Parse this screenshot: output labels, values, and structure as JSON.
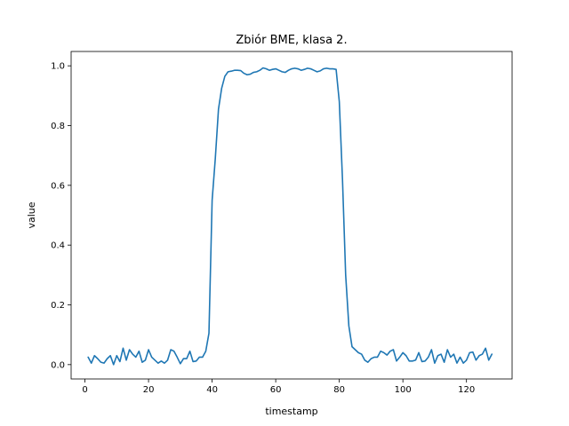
{
  "chart_data": {
    "type": "line",
    "title": "Zbiór BME, klasa 2.",
    "xlabel": "timestamp",
    "ylabel": "value",
    "xlim": [
      -4.35,
      134.35
    ],
    "ylim": [
      -0.048,
      1.048
    ],
    "xticks": [
      0,
      20,
      40,
      60,
      80,
      100,
      120
    ],
    "yticks": [
      0.0,
      0.2,
      0.4,
      0.6,
      0.8,
      1.0
    ],
    "xtick_labels": [
      "0",
      "20",
      "40",
      "60",
      "80",
      "100",
      "120"
    ],
    "ytick_labels": [
      "0.0",
      "0.2",
      "0.4",
      "0.6",
      "0.8",
      "1.0"
    ],
    "grid": false,
    "legend": "none",
    "series": [
      {
        "color": "#1f77b4",
        "x": [
          1,
          2,
          3,
          4,
          5,
          6,
          7,
          8,
          9,
          10,
          11,
          12,
          13,
          14,
          15,
          16,
          17,
          18,
          19,
          20,
          21,
          22,
          23,
          24,
          25,
          26,
          27,
          28,
          29,
          30,
          31,
          32,
          33,
          34,
          35,
          36,
          37,
          38,
          39,
          40,
          41,
          42,
          43,
          44,
          45,
          46,
          47,
          48,
          49,
          50,
          51,
          52,
          53,
          54,
          55,
          56,
          57,
          58,
          59,
          60,
          61,
          62,
          63,
          64,
          65,
          66,
          67,
          68,
          69,
          70,
          71,
          72,
          73,
          74,
          75,
          76,
          77,
          78,
          79,
          80,
          81,
          82,
          83,
          84,
          85,
          86,
          87,
          88,
          89,
          90,
          91,
          92,
          93,
          94,
          95,
          96,
          97,
          98,
          99,
          100,
          101,
          102,
          103,
          104,
          105,
          106,
          107,
          108,
          109,
          110,
          111,
          112,
          113,
          114,
          115,
          116,
          117,
          118,
          119,
          120,
          121,
          122,
          123,
          124,
          125,
          126,
          127,
          128
        ],
        "values": [
          0.025,
          0.005,
          0.03,
          0.02,
          0.008,
          0.005,
          0.02,
          0.03,
          0.0,
          0.03,
          0.01,
          0.055,
          0.015,
          0.05,
          0.035,
          0.025,
          0.045,
          0.008,
          0.015,
          0.05,
          0.025,
          0.015,
          0.005,
          0.012,
          0.005,
          0.015,
          0.05,
          0.045,
          0.025,
          0.003,
          0.02,
          0.02,
          0.045,
          0.01,
          0.012,
          0.025,
          0.025,
          0.045,
          0.105,
          0.55,
          0.69,
          0.855,
          0.925,
          0.965,
          0.98,
          0.982,
          0.985,
          0.985,
          0.984,
          0.975,
          0.97,
          0.972,
          0.978,
          0.98,
          0.985,
          0.993,
          0.99,
          0.985,
          0.988,
          0.99,
          0.985,
          0.98,
          0.978,
          0.985,
          0.99,
          0.992,
          0.99,
          0.985,
          0.988,
          0.992,
          0.99,
          0.985,
          0.98,
          0.983,
          0.99,
          0.992,
          0.99,
          0.99,
          0.988,
          0.88,
          0.62,
          0.3,
          0.13,
          0.06,
          0.05,
          0.04,
          0.035,
          0.015,
          0.008,
          0.02,
          0.025,
          0.025,
          0.045,
          0.04,
          0.032,
          0.045,
          0.05,
          0.012,
          0.025,
          0.04,
          0.03,
          0.012,
          0.012,
          0.015,
          0.04,
          0.01,
          0.012,
          0.025,
          0.05,
          0.005,
          0.03,
          0.035,
          0.008,
          0.05,
          0.025,
          0.035,
          0.005,
          0.025,
          0.005,
          0.015,
          0.04,
          0.042,
          0.015,
          0.03,
          0.035,
          0.055,
          0.015,
          0.035
        ]
      }
    ]
  }
}
